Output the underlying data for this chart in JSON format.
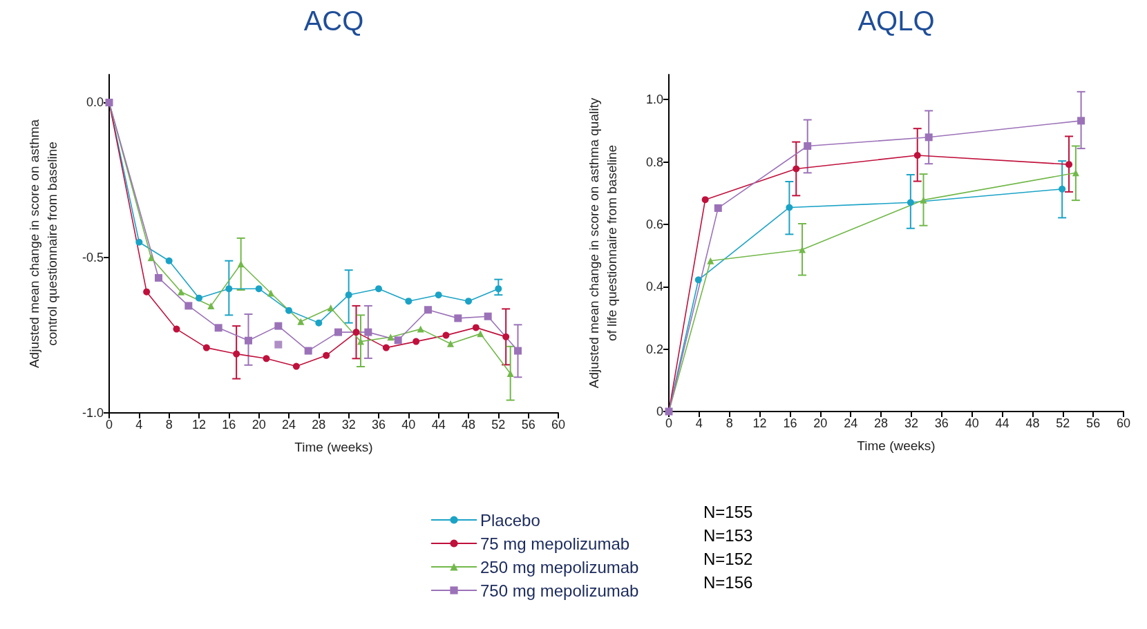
{
  "chart_data": [
    {
      "type": "line",
      "title": "ACQ",
      "xlabel": "Time (weeks)",
      "ylabel": "Adjusted mean change in score on asthma\ncontrol questionnaire from baseline",
      "xlim": [
        0,
        60
      ],
      "xticks": [
        0,
        4,
        8,
        12,
        16,
        20,
        24,
        28,
        32,
        36,
        40,
        44,
        48,
        52,
        56,
        60
      ],
      "ylim": [
        -1.0,
        0.09
      ],
      "yticks": [
        {
          "value": 0,
          "label": "0.0"
        },
        {
          "value": -0.5,
          "label": "-0.5"
        },
        {
          "value": -1.0,
          "label": "-1.0"
        }
      ],
      "grid": false,
      "legend": "bottom",
      "annotations": [
        "N=155",
        "N=153",
        "N=152",
        "N=156"
      ],
      "series": [
        {
          "name": "Placebo",
          "color": "#1ba3c6",
          "marker": "circle",
          "x": [
            0,
            4,
            8,
            12,
            16,
            20,
            24,
            28,
            32,
            36,
            40,
            44,
            48,
            52
          ],
          "values": [
            0,
            -0.45,
            -0.51,
            -0.63,
            -0.6,
            -0.6,
            -0.67,
            -0.71,
            -0.62,
            -0.6,
            -0.64,
            -0.62,
            -0.64,
            -0.6
          ],
          "errors": [
            null,
            null,
            null,
            null,
            [
              -0.685,
              -0.51
            ],
            null,
            null,
            null,
            [
              -0.71,
              -0.54
            ],
            null,
            null,
            null,
            null,
            [
              -0.62,
              -0.57
            ]
          ]
        },
        {
          "name": "75 mg mepolizumab",
          "color": "#c0103c",
          "marker": "circle",
          "x": [
            0,
            5,
            9,
            13,
            17,
            21,
            25,
            29,
            33,
            37,
            41,
            45,
            49,
            53
          ],
          "values": [
            0,
            -0.61,
            -0.73,
            -0.79,
            -0.81,
            -0.825,
            -0.85,
            -0.815,
            -0.74,
            -0.79,
            -0.77,
            -0.75,
            -0.725,
            -0.755
          ],
          "errors": [
            null,
            null,
            null,
            null,
            [
              -0.89,
              -0.72
            ],
            null,
            null,
            null,
            [
              -0.825,
              -0.655
            ],
            null,
            null,
            null,
            null,
            [
              -0.845,
              -0.665
            ]
          ]
        },
        {
          "name": "250 mg mepolizumab",
          "color": "#72b84a",
          "marker": "triangle",
          "x": [
            0,
            5.6,
            9.6,
            13.6,
            17.6,
            21.6,
            25.6,
            29.6,
            33.6,
            37.6,
            41.6,
            45.6,
            49.6,
            53.6
          ],
          "values": [
            0,
            -0.5,
            -0.61,
            -0.655,
            -0.52,
            -0.614,
            -0.706,
            -0.662,
            -0.77,
            -0.756,
            -0.73,
            -0.777,
            -0.745,
            -0.873
          ],
          "errors": [
            null,
            null,
            null,
            null,
            [
              -0.604,
              -0.437
            ],
            null,
            null,
            null,
            [
              -0.851,
              -0.685
            ],
            null,
            null,
            null,
            null,
            [
              -0.959,
              -0.786
            ]
          ]
        },
        {
          "name": "750 mg mepolizumab",
          "color": "#9b72b8",
          "marker": "square",
          "x": [
            0,
            6.6,
            10.6,
            14.6,
            18.6,
            22.6,
            26.6,
            30.6,
            34.6,
            38.6,
            42.6,
            46.6,
            50.6,
            54.6
          ],
          "values": [
            0,
            -0.565,
            -0.655,
            -0.726,
            -0.767,
            -0.72,
            -0.8,
            -0.74,
            -0.74,
            -0.766,
            -0.668,
            -0.695,
            -0.689,
            -0.8
          ],
          "errors": [
            null,
            null,
            null,
            null,
            [
              -0.846,
              -0.682
            ],
            null,
            null,
            null,
            [
              -0.824,
              -0.655
            ],
            null,
            null,
            null,
            null,
            [
              -0.885,
              -0.716
            ]
          ]
        },
        {
          "type": "scatter",
          "color": "#9b72b8",
          "marker": "square",
          "x": [
            22.6
          ],
          "values": [
            -0.78
          ]
        }
      ]
    },
    {
      "type": "line",
      "title": "AQLQ",
      "xlabel": "Time (weeks)",
      "ylabel": "Adjusted mean change in score on asthma quality\nof life questionnaire from baseline",
      "xlim": [
        0,
        60
      ],
      "xticks": [
        0,
        4,
        8,
        12,
        16,
        20,
        24,
        28,
        32,
        36,
        40,
        44,
        48,
        52,
        56,
        60
      ],
      "ylim": [
        0,
        1.08
      ],
      "yticks": [
        0,
        0.2,
        0.4,
        0.6,
        0.8,
        {
          "value": 1.0,
          "label": "1.0"
        }
      ],
      "grid": false,
      "series": [
        {
          "color": "#1ba3c6",
          "marker": "circle",
          "x": [
            0,
            3.9,
            15.9,
            31.9,
            51.9
          ],
          "values": [
            0,
            0.422,
            0.654,
            0.67,
            0.713
          ],
          "errors": [
            null,
            null,
            [
              0.568,
              0.737
            ],
            [
              0.587,
              0.759
            ],
            [
              0.621,
              0.803
            ]
          ]
        },
        {
          "color": "#c0103c",
          "marker": "circle",
          "x": [
            0,
            4.8,
            16.8,
            32.8,
            52.8
          ],
          "values": [
            0,
            0.679,
            0.778,
            0.821,
            0.792
          ],
          "errors": [
            null,
            null,
            [
              0.692,
              0.864
            ],
            [
              0.738,
              0.907
            ],
            [
              0.704,
              0.882
            ]
          ]
        },
        {
          "color": "#72b84a",
          "marker": "triangle",
          "x": [
            0,
            5.5,
            17.6,
            33.6,
            53.7
          ],
          "values": [
            0,
            0.483,
            0.519,
            0.678,
            0.765
          ],
          "errors": [
            null,
            null,
            [
              0.437,
              0.602
            ],
            [
              0.596,
              0.761
            ],
            [
              0.677,
              0.851
            ]
          ]
        },
        {
          "color": "#9b72b8",
          "marker": "square",
          "x": [
            0,
            6.5,
            18.3,
            34.3,
            54.4
          ],
          "values": [
            0,
            0.652,
            0.851,
            0.879,
            0.932
          ],
          "errors": [
            null,
            null,
            [
              0.765,
              0.935
            ],
            [
              0.794,
              0.964
            ],
            [
              0.843,
              1.025
            ]
          ]
        }
      ]
    }
  ]
}
